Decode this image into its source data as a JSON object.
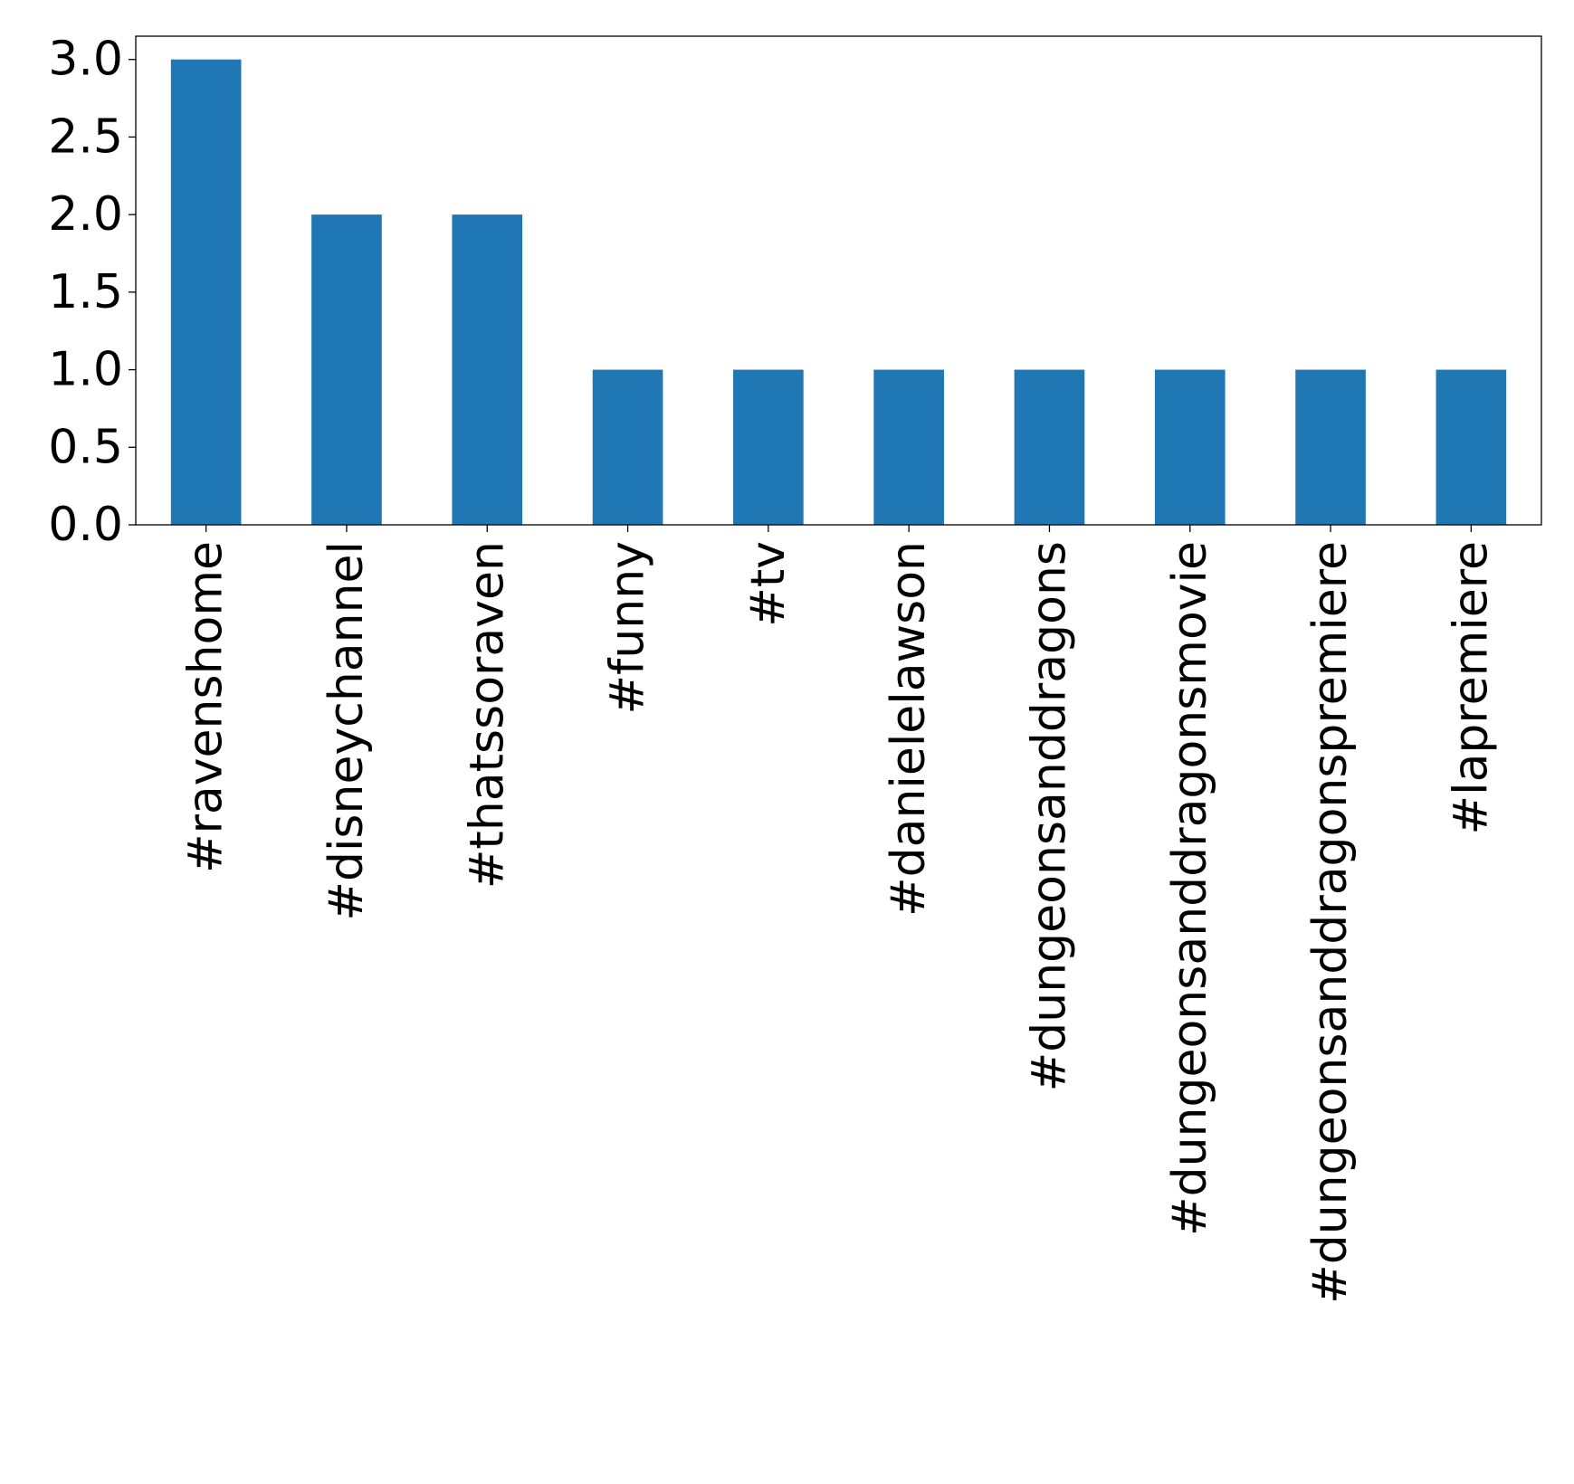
{
  "chart_data": {
    "type": "bar",
    "title": "",
    "xlabel": "",
    "ylabel": "",
    "categories": [
      "#ravenshome",
      "#disneychannel",
      "#thatssoraven",
      "#funny",
      "#tv",
      "#danielelawson",
      "#dungeonsanddragons",
      "#dungeonsanddragonsmovie",
      "#dungeonsanddragonspremiere",
      "#lapremiere"
    ],
    "values": [
      3,
      2,
      2,
      1,
      1,
      1,
      1,
      1,
      1,
      1
    ],
    "ylim": [
      0,
      3.15
    ],
    "yticks": [
      0.0,
      0.5,
      1.0,
      1.5,
      2.0,
      2.5,
      3.0
    ],
    "ytick_labels": [
      "0.0",
      "0.5",
      "1.0",
      "1.5",
      "2.0",
      "2.5",
      "3.0"
    ],
    "bar_color": "#1f77b4",
    "grid": false,
    "legend": "none",
    "x_tick_rotation": "vertical"
  }
}
